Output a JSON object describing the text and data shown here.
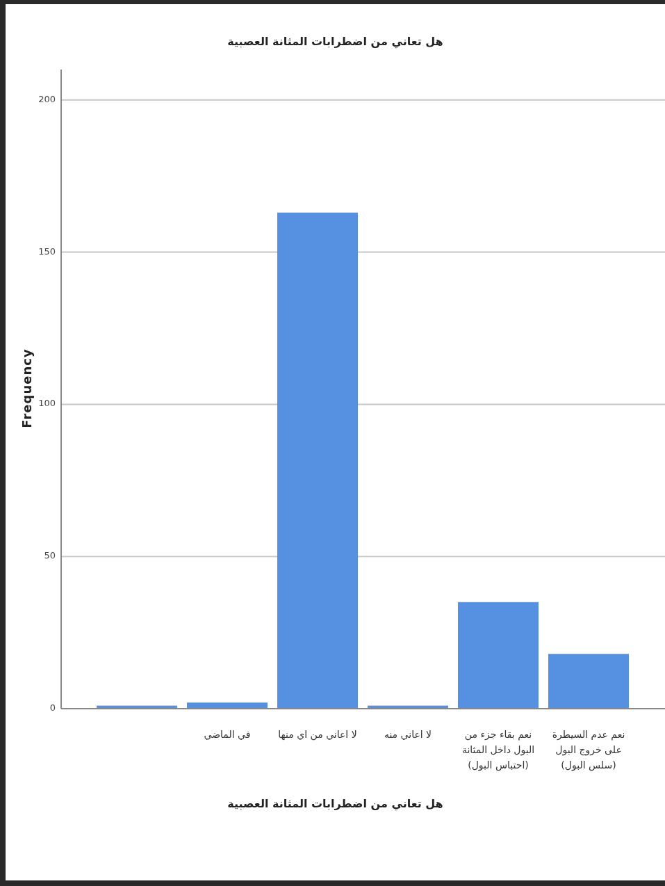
{
  "chart_data": {
    "type": "bar",
    "title": "هل تعاني من اضطرابات المثانة العصبية",
    "xlabel": "هل تعاني من اضطرابات المثانة العصبية",
    "ylabel": "Frequency",
    "categories": [
      null,
      "في الماضي",
      "لا اعاني من اي منها",
      "لا اعاني منه",
      "نعم بقاء جزء من البول داخل المثانة (احتباس البول)",
      "نعم عدم السيطرة على خروج البول (سلس البول)"
    ],
    "values": [
      1,
      2,
      163,
      1,
      35,
      18
    ],
    "color": "#5591e0",
    "ylim": [
      0,
      210
    ],
    "yticks": [
      0,
      50,
      100,
      150,
      200
    ],
    "grid": "y"
  }
}
